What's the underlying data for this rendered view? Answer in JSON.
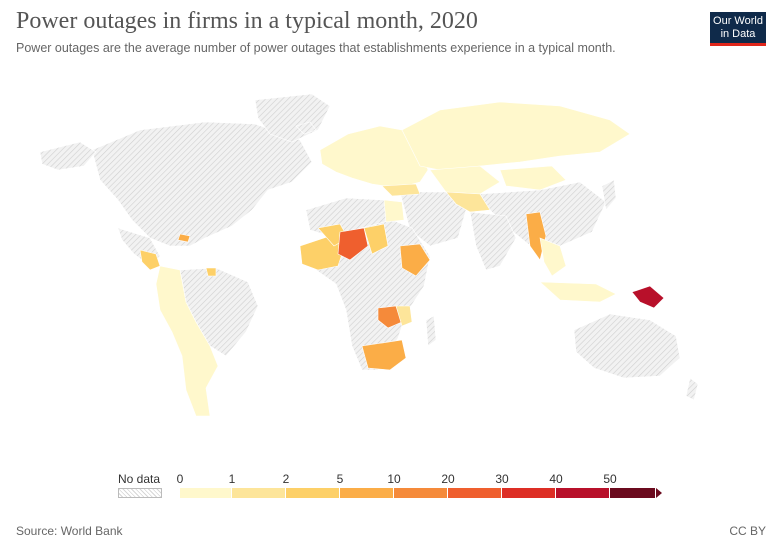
{
  "header": {
    "title": "Power outages in firms in a typical month, 2020",
    "subtitle": "Power outages are the average number of power outages that establishments experience in a typical month."
  },
  "logo": {
    "line1": "Our World",
    "line2": "in Data"
  },
  "legend": {
    "no_data_label": "No data",
    "ticks": [
      "0",
      "1",
      "2",
      "5",
      "10",
      "20",
      "30",
      "40",
      "50"
    ],
    "colors": [
      "#fff8cc",
      "#fde59a",
      "#fdd068",
      "#fbad47",
      "#f58a3a",
      "#ef5f2e",
      "#dd2e25",
      "#b8102a",
      "#6b0a1e"
    ]
  },
  "map": {
    "colors": {
      "no_data_fill": "#eeeeee",
      "no_data_hatch": "#cfcfcf",
      "border": "#ffffff"
    },
    "regions_with_data": [
      {
        "name": "Papua New Guinea",
        "bin": 8
      },
      {
        "name": "Niger",
        "bin": 6
      },
      {
        "name": "Ethiopia",
        "bin": 3
      },
      {
        "name": "South Africa",
        "bin": 3
      },
      {
        "name": "Zambia",
        "bin": 4
      },
      {
        "name": "Myanmar",
        "bin": 3
      },
      {
        "name": "Sudan",
        "bin": 2
      },
      {
        "name": "Mali",
        "bin": 2
      },
      {
        "name": "Russia",
        "bin": 0
      },
      {
        "name": "Kazakhstan",
        "bin": 0
      },
      {
        "name": "Mongolia",
        "bin": 0
      },
      {
        "name": "South America group",
        "bin": 0
      },
      {
        "name": "Europe group",
        "bin": 0
      }
    ]
  },
  "footer": {
    "source": "Source: World Bank",
    "license": "CC BY"
  }
}
